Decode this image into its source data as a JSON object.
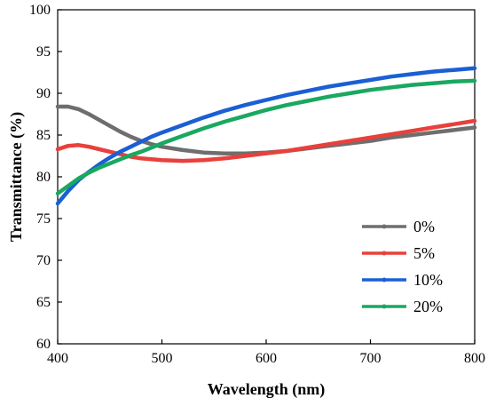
{
  "chart_data": {
    "type": "line",
    "xlabel": "Wavelength (nm)",
    "ylabel": "Transmittance (%)",
    "xlim": [
      400,
      800
    ],
    "ylim": [
      60,
      100
    ],
    "xticks": [
      "400",
      "500",
      "600",
      "700",
      "800"
    ],
    "yticks": [
      "60",
      "65",
      "70",
      "75",
      "80",
      "85",
      "90",
      "95",
      "100"
    ],
    "grid": false,
    "legend_position": "bottom-right",
    "x": [
      400,
      410,
      420,
      430,
      440,
      450,
      460,
      470,
      480,
      490,
      500,
      520,
      540,
      560,
      580,
      600,
      620,
      640,
      660,
      680,
      700,
      720,
      740,
      760,
      780,
      800
    ],
    "series": [
      {
        "name": "0%",
        "color": "#6e6e6e",
        "values": [
          88.4,
          88.4,
          88.1,
          87.5,
          86.8,
          86.1,
          85.4,
          84.8,
          84.3,
          83.9,
          83.6,
          83.2,
          82.9,
          82.8,
          82.8,
          82.9,
          83.1,
          83.4,
          83.7,
          84.0,
          84.3,
          84.7,
          85.0,
          85.3,
          85.6,
          85.9
        ]
      },
      {
        "name": "5%",
        "color": "#e8403c",
        "values": [
          83.3,
          83.7,
          83.8,
          83.6,
          83.3,
          83.0,
          82.7,
          82.4,
          82.2,
          82.1,
          82.0,
          81.9,
          82.0,
          82.2,
          82.5,
          82.8,
          83.1,
          83.5,
          83.9,
          84.3,
          84.7,
          85.1,
          85.5,
          85.9,
          86.3,
          86.7
        ]
      },
      {
        "name": "10%",
        "color": "#1a5fd4",
        "values": [
          76.8,
          78.3,
          79.6,
          80.6,
          81.5,
          82.3,
          83.0,
          83.6,
          84.2,
          84.8,
          85.3,
          86.2,
          87.1,
          87.9,
          88.6,
          89.2,
          89.8,
          90.3,
          90.8,
          91.2,
          91.6,
          92.0,
          92.3,
          92.6,
          92.8,
          93.0
        ]
      },
      {
        "name": "20%",
        "color": "#1aa860",
        "values": [
          78.0,
          78.9,
          79.8,
          80.5,
          81.1,
          81.6,
          82.1,
          82.6,
          83.0,
          83.5,
          84.0,
          84.9,
          85.8,
          86.6,
          87.3,
          88.0,
          88.6,
          89.1,
          89.6,
          90.0,
          90.4,
          90.7,
          91.0,
          91.2,
          91.4,
          91.5
        ]
      }
    ]
  }
}
